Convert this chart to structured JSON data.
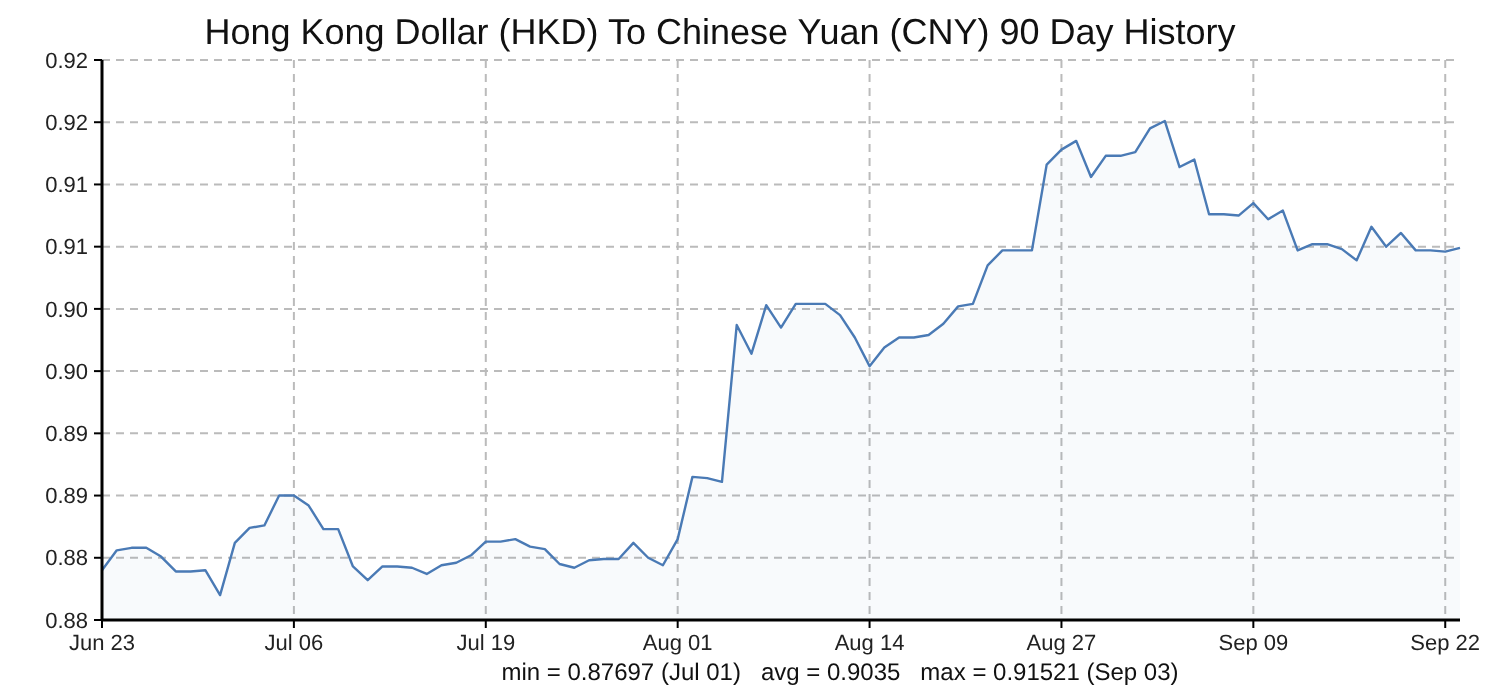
{
  "chart_data": {
    "type": "area",
    "title": "Hong Kong Dollar (HKD) To Chinese Yuan (CNY) 90 Day History",
    "annotations": [
      "min = 0.87697 (Jul 01)   avg = 0.9035   max = 0.91521 (Sep 03)"
    ],
    "x": [
      "--06-23",
      "--06-24",
      "--06-25",
      "--06-26",
      "--06-27",
      "--06-28",
      "--06-29",
      "--06-30",
      "--07-01",
      "--07-02",
      "--07-03",
      "--07-04",
      "--07-05",
      "--07-06",
      "--07-07",
      "--07-08",
      "--07-09",
      "--07-10",
      "--07-11",
      "--07-12",
      "--07-13",
      "--07-14",
      "--07-15",
      "--07-16",
      "--07-17",
      "--07-18",
      "--07-19",
      "--07-20",
      "--07-21",
      "--07-22",
      "--07-23",
      "--07-24",
      "--07-25",
      "--07-26",
      "--07-27",
      "--07-28",
      "--07-29",
      "--07-30",
      "--07-31",
      "--08-01",
      "--08-02",
      "--08-03",
      "--08-04",
      "--08-05",
      "--08-06",
      "--08-07",
      "--08-08",
      "--08-09",
      "--08-10",
      "--08-11",
      "--08-12",
      "--08-13",
      "--08-14",
      "--08-15",
      "--08-16",
      "--08-17",
      "--08-18",
      "--08-19",
      "--08-20",
      "--08-21",
      "--08-22",
      "--08-23",
      "--08-24",
      "--08-25",
      "--08-26",
      "--08-27",
      "--08-28",
      "--08-29",
      "--08-30",
      "--08-31",
      "--09-01",
      "--09-02",
      "--09-03",
      "--09-04",
      "--09-05",
      "--09-06",
      "--09-07",
      "--09-08",
      "--09-09",
      "--09-10",
      "--09-11",
      "--09-12",
      "--09-13",
      "--09-14",
      "--09-15",
      "--09-16",
      "--09-17",
      "--09-18",
      "--09-19",
      "--09-20",
      "--09-21",
      "--09-22",
      "--09-23"
    ],
    "series": [
      {
        "color": "#4a7ab5",
        "values": [
          0.879,
          0.8806,
          0.8808,
          0.8808,
          0.8801,
          0.8789,
          0.8789,
          0.879,
          0.877,
          0.8812,
          0.8824,
          0.8826,
          0.885,
          0.885,
          0.8842,
          0.8823,
          0.8823,
          0.8793,
          0.8782,
          0.8793,
          0.8793,
          0.8792,
          0.8787,
          0.8794,
          0.8796,
          0.8802,
          0.8813,
          0.8813,
          0.8815,
          0.8809,
          0.8807,
          0.8795,
          0.8792,
          0.8798,
          0.8799,
          0.8799,
          0.8812,
          0.88,
          0.8794,
          0.8815,
          0.8865,
          0.8864,
          0.8861,
          0.8987,
          0.8964,
          0.9003,
          0.8985,
          0.9004,
          0.9004,
          0.9004,
          0.8995,
          0.8977,
          0.8954,
          0.8969,
          0.8977,
          0.8977,
          0.8979,
          0.8988,
          0.9002,
          0.9004,
          0.9035,
          0.9047,
          0.9047,
          0.9047,
          0.9116,
          0.9128,
          0.9135,
          0.9106,
          0.9123,
          0.9123,
          0.9126,
          0.9145,
          0.9151,
          0.9114,
          0.912,
          0.9076,
          0.9076,
          0.9075,
          0.9085,
          0.9072,
          0.9079,
          0.9047,
          0.9052,
          0.9052,
          0.9048,
          0.9039,
          0.9066,
          0.905,
          0.9061,
          0.9047,
          0.9047,
          0.9046,
          0.9049
        ]
      }
    ],
    "xlim": [
      "--06-23",
      "--09-23"
    ],
    "xticks": [
      {
        "value": "--06-23",
        "label": "Jun 23"
      },
      {
        "value": "--07-06",
        "label": "Jul 06"
      },
      {
        "value": "--07-19",
        "label": "Jul 19"
      },
      {
        "value": "--08-01",
        "label": "Aug 01"
      },
      {
        "value": "--08-14",
        "label": "Aug 14"
      },
      {
        "value": "--08-27",
        "label": "Aug 27"
      },
      {
        "value": "--09-09",
        "label": "Sep 09"
      },
      {
        "value": "--09-22",
        "label": "Sep 22"
      }
    ],
    "ylim": [
      0.875,
      0.92
    ],
    "yticks": [
      {
        "value": 0.875,
        "label": "0.88"
      },
      {
        "value": 0.88,
        "label": "0.88"
      },
      {
        "value": 0.885,
        "label": "0.89"
      },
      {
        "value": 0.89,
        "label": "0.89"
      },
      {
        "value": 0.895,
        "label": "0.90"
      },
      {
        "value": 0.9,
        "label": "0.90"
      },
      {
        "value": 0.905,
        "label": "0.91"
      },
      {
        "value": 0.91,
        "label": "0.91"
      },
      {
        "value": 0.915,
        "label": "0.92"
      },
      {
        "value": 0.92,
        "label": "0.92"
      }
    ],
    "grid": true,
    "line_style": "solid",
    "marker": "none"
  }
}
